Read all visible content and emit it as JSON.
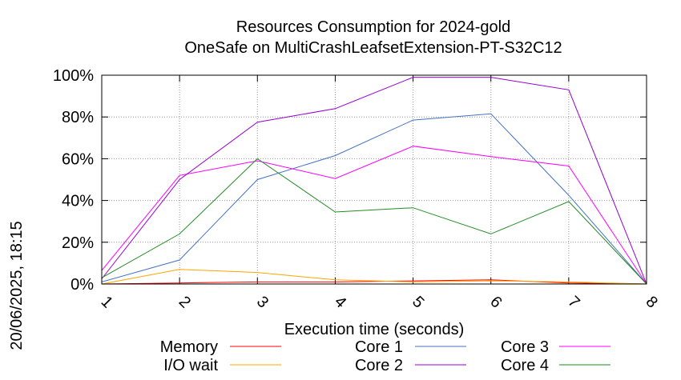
{
  "chart_data": {
    "type": "line",
    "title": "Resources Consumption for 2024-gold",
    "subtitle": "OneSafe on MultiCrashLeafsetExtension-PT-S32C12",
    "xlabel": "Execution time (seconds)",
    "ylabel": "",
    "side_label": "20/06/2025, 18:15",
    "x": [
      1,
      2,
      3,
      4,
      5,
      6,
      7,
      8
    ],
    "xlim": [
      1,
      8
    ],
    "ylim": [
      0,
      100
    ],
    "yticks": [
      0,
      20,
      40,
      60,
      80,
      100
    ],
    "ytick_labels": [
      "0%",
      "20%",
      "40%",
      "60%",
      "80%",
      "100%"
    ],
    "xtick_labels": [
      "1",
      "2",
      "3",
      "4",
      "5",
      "6",
      "7",
      "8"
    ],
    "grid": true,
    "legend_position": "bottom",
    "series": [
      {
        "name": "Memory",
        "color": "#ff0000",
        "values": [
          0,
          0.5,
          1,
          1,
          1.5,
          2,
          0.5,
          0
        ]
      },
      {
        "name": "Core 1",
        "color": "#4472c4",
        "values": [
          1,
          11.5,
          50,
          61.5,
          78.5,
          81.5,
          42.5,
          0
        ]
      },
      {
        "name": "Core 3",
        "color": "#ff00ff",
        "values": [
          6.5,
          52,
          59,
          50.5,
          66,
          61,
          56.5,
          0
        ]
      },
      {
        "name": "I/O wait",
        "color": "#ffa500",
        "values": [
          0,
          7,
          5.5,
          2,
          1,
          1.5,
          1,
          0
        ]
      },
      {
        "name": "Core 2",
        "color": "#9400d3",
        "values": [
          2.5,
          50,
          77.5,
          84,
          99,
          99,
          93,
          0
        ]
      },
      {
        "name": "Core 4",
        "color": "#228b22",
        "values": [
          3,
          24,
          60,
          34.5,
          36.5,
          24,
          39.5,
          0
        ]
      }
    ]
  }
}
